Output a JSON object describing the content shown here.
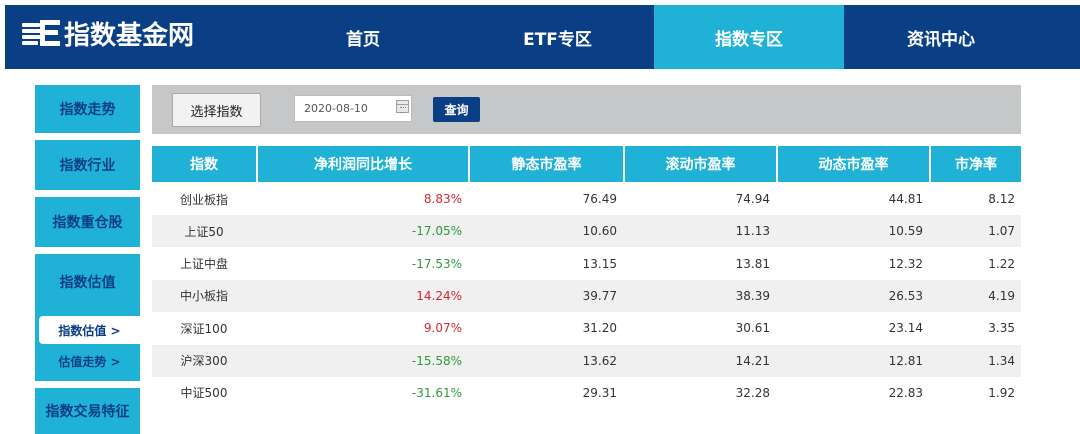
{
  "header": {
    "logo_text": "指数基金网",
    "nav": [
      {
        "label": "首页",
        "active": false
      },
      {
        "label": "ETF专区",
        "active": false
      },
      {
        "label": "指数专区",
        "active": true
      },
      {
        "label": "资讯中心",
        "active": false
      }
    ]
  },
  "sidebar": {
    "items": [
      {
        "label": "指数走势"
      },
      {
        "label": "指数行业"
      },
      {
        "label": "指数重仓股"
      },
      {
        "label": "指数估值"
      },
      {
        "label": "指数交易特征"
      }
    ],
    "sub_items": [
      {
        "label": "指数估值 >",
        "active": true
      },
      {
        "label": "估值走势 >",
        "active": false
      }
    ]
  },
  "search": {
    "select_label": "选择指数",
    "date_value": "2020-08-10",
    "query_label": "查询"
  },
  "table": {
    "headers": [
      "指数",
      "净利润同比增长",
      "静态市盈率",
      "滚动市盈率",
      "动态市盈率",
      "市净率"
    ],
    "rows": [
      {
        "name": "创业板指",
        "growth": "8.83%",
        "growth_sign": "pos",
        "static_pe": "76.49",
        "ttm_pe": "74.94",
        "dyn_pe": "44.81",
        "pb": "8.12"
      },
      {
        "name": "上证50",
        "growth": "-17.05%",
        "growth_sign": "neg",
        "static_pe": "10.60",
        "ttm_pe": "11.13",
        "dyn_pe": "10.59",
        "pb": "1.07"
      },
      {
        "name": "上证中盘",
        "growth": "-17.53%",
        "growth_sign": "neg",
        "static_pe": "13.15",
        "ttm_pe": "13.81",
        "dyn_pe": "12.32",
        "pb": "1.22"
      },
      {
        "name": "中小板指",
        "growth": "14.24%",
        "growth_sign": "pos",
        "static_pe": "39.77",
        "ttm_pe": "38.39",
        "dyn_pe": "26.53",
        "pb": "4.19"
      },
      {
        "name": "深证100",
        "growth": "9.07%",
        "growth_sign": "pos",
        "static_pe": "31.20",
        "ttm_pe": "30.61",
        "dyn_pe": "23.14",
        "pb": "3.35"
      },
      {
        "name": "沪深300",
        "growth": "-15.58%",
        "growth_sign": "neg",
        "static_pe": "13.62",
        "ttm_pe": "14.21",
        "dyn_pe": "12.81",
        "pb": "1.34"
      },
      {
        "name": "中证500",
        "growth": "-31.61%",
        "growth_sign": "neg",
        "static_pe": "29.31",
        "ttm_pe": "32.28",
        "dyn_pe": "22.83",
        "pb": "1.92"
      }
    ]
  },
  "colors": {
    "brand_dark": "#0a3f86",
    "brand_light": "#1fb2d6",
    "positive": "#d9262c",
    "negative": "#2c9c3b"
  }
}
